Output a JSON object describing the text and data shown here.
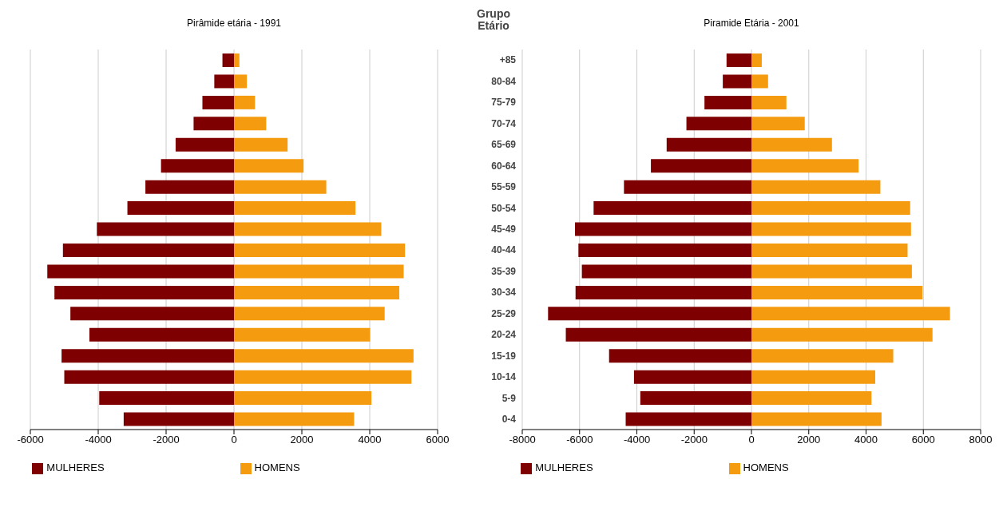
{
  "chart_data": [
    {
      "type": "bar",
      "title": "Pirâmide etária - 1991",
      "orientation": "horizontal",
      "stacked": true,
      "grid": "x",
      "legend": "bottom",
      "tick_labels": "x",
      "categories": [
        null,
        null,
        null,
        null,
        null,
        null,
        null,
        null,
        null,
        null,
        null,
        null,
        null,
        null,
        null,
        null,
        null,
        null
      ],
      "xlim": [
        -6000,
        6000
      ],
      "xticks": [
        -6000,
        -4000,
        -2000,
        0,
        2000,
        4000,
        6000
      ],
      "series": [
        {
          "name": "MULHERES",
          "color": "#7f0000",
          "values": [
            -340,
            -580,
            -930,
            -1190,
            -1720,
            -2150,
            -2610,
            -3140,
            -4040,
            -5040,
            -5500,
            -5290,
            -4820,
            -4260,
            -5080,
            -5000,
            -3970,
            -3250
          ]
        },
        {
          "name": "HOMENS",
          "color": "#f59b0f",
          "values": [
            160,
            380,
            620,
            950,
            1580,
            2050,
            2720,
            3580,
            4340,
            5040,
            5000,
            4870,
            4440,
            4010,
            5290,
            5230,
            4050,
            3540
          ]
        }
      ]
    },
    {
      "type": "bar",
      "title": "Piramide Etária - 2001",
      "ylabel": "Grupo Etário",
      "orientation": "horizontal",
      "stacked": true,
      "grid": "x",
      "legend": "bottom",
      "categories": [
        "+85",
        "80-84",
        "75-79",
        "70-74",
        "65-69",
        "60-64",
        "55-59",
        "50-54",
        "45-49",
        "40-44",
        "35-39",
        "30-34",
        "25-29",
        "20-24",
        "15-19",
        "10-14",
        "5-9",
        "0-4"
      ],
      "xlim": [
        -8000,
        8000
      ],
      "xticks": [
        -8000,
        -6000,
        -4000,
        -2000,
        0,
        2000,
        4000,
        6000,
        8000
      ],
      "series": [
        {
          "name": "MULHERES",
          "color": "#7f0000",
          "values": [
            -870,
            -1000,
            -1640,
            -2270,
            -2960,
            -3510,
            -4450,
            -5510,
            -6160,
            -6040,
            -5920,
            -6140,
            -7100,
            -6480,
            -4970,
            -4100,
            -3880,
            -4390
          ]
        },
        {
          "name": "HOMENS",
          "color": "#f59b0f",
          "values": [
            360,
            580,
            1220,
            1860,
            2810,
            3740,
            4500,
            5540,
            5570,
            5450,
            5600,
            5970,
            6930,
            6320,
            4950,
            4320,
            4190,
            4540
          ]
        }
      ]
    }
  ]
}
